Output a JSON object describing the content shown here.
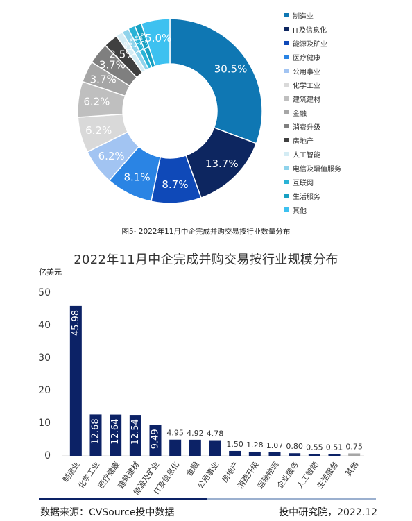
{
  "chart_data": [
    {
      "type": "pie",
      "donut": true,
      "title": "",
      "caption": "图5- 2022年11月中企完成并购交易按行业数量分布",
      "legend_position": "right",
      "slices": [
        {
          "name": "制造业",
          "value": 30.5,
          "label": "30.5%",
          "color": "#0f77b3"
        },
        {
          "name": "IT及信息化",
          "value": 13.7,
          "label": "13.7%",
          "color": "#0d2660"
        },
        {
          "name": "能源及矿业",
          "value": 8.7,
          "label": "8.7%",
          "color": "#0f49b8"
        },
        {
          "name": "医疗健康",
          "value": 8.1,
          "label": "8.1%",
          "color": "#2a84e4"
        },
        {
          "name": "公用事业",
          "value": 6.2,
          "label": "6.2%",
          "color": "#a2c4f2"
        },
        {
          "name": "化学工业",
          "value": 6.2,
          "label": "6.2%",
          "color": "#d9d9d9"
        },
        {
          "name": "建筑建材",
          "value": 6.2,
          "label": "6.2%",
          "color": "#bfbfbf"
        },
        {
          "name": "金融",
          "value": 3.7,
          "label": "3.7%",
          "color": "#a6a6a6"
        },
        {
          "name": "消费升级",
          "value": 3.7,
          "label": "3.7%",
          "color": "#7f7f7f"
        },
        {
          "name": "房地产",
          "value": 2.5,
          "label": "2.5%",
          "color": "#404040"
        },
        {
          "name": "人工智能",
          "value": 1.2,
          "label": "1.2%",
          "color": "#d4ecf4"
        },
        {
          "name": "电信及增值服务",
          "value": 1.2,
          "label": "1.2%",
          "color": "#8fd3eb"
        },
        {
          "name": "互联网",
          "value": 1.2,
          "label": "1.2%",
          "color": "#2ab3d6"
        },
        {
          "name": "生活服务",
          "value": 1.2,
          "label": "1.2%",
          "color": "#18a0c2"
        },
        {
          "name": "其他",
          "value": 5.0,
          "label": "5.0%",
          "color": "#3dc1f0"
        }
      ]
    },
    {
      "type": "bar",
      "title": "2022年11月中企完成并购交易按行业规模分布",
      "ylabel": "亿美元",
      "xlabel": "",
      "ylim": [
        0,
        50
      ],
      "yticks": [
        0,
        10,
        20,
        30,
        40,
        50
      ],
      "categories": [
        "制造业",
        "化学工业",
        "医疗健康",
        "建筑建材",
        "能源及矿业",
        "IT及信息化",
        "金融",
        "公用事业",
        "房地产",
        "消费升级",
        "运输物流",
        "企业服务",
        "人工智能",
        "生活服务",
        "其他"
      ],
      "values": [
        45.98,
        12.68,
        12.64,
        12.54,
        9.49,
        4.95,
        4.92,
        4.78,
        1.5,
        1.28,
        1.07,
        0.8,
        0.55,
        0.51,
        0.75
      ],
      "value_labels": [
        "45.98",
        "12.68",
        "12.64",
        "12.54",
        "9.49",
        "4.95",
        "4.92",
        "4.78",
        "1.50",
        "1.28",
        "1.07",
        "0.80",
        "0.55",
        "0.51",
        "0.75"
      ],
      "bar_colors": [
        "#0c2266",
        "#0c2266",
        "#0c2266",
        "#0c2266",
        "#0c2266",
        "#0c2266",
        "#0c2266",
        "#0c2266",
        "#0c2266",
        "#0c2266",
        "#0c2266",
        "#0c2266",
        "#0c2266",
        "#0c2266",
        "#a6a6a6"
      ],
      "grid": false
    }
  ],
  "footer": {
    "source": "数据来源：CVSource投中数据",
    "org": "投中研究院，2022.12"
  }
}
